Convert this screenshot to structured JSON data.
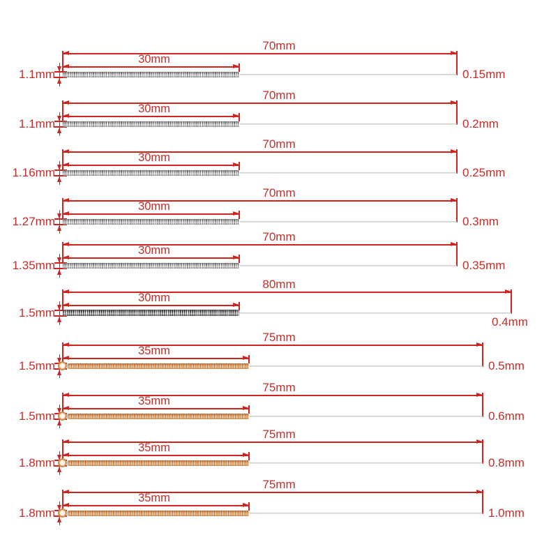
{
  "colors": {
    "dimension_line": "#cd2420",
    "dimension_text": "#c62d28",
    "steel_coil": "#9a9a9a",
    "dark_steel_coil": "#4a4a4a",
    "copper_coil": "#d98a4a",
    "needle_wire": "#d4d4d0",
    "background": "#ffffff"
  },
  "rows": [
    {
      "left_label": "1.1mm",
      "total_label": "70mm",
      "coil_label": "30mm",
      "right_label": "0.15mm",
      "coil_type": "steel",
      "shank_diameter_mm": 1.1,
      "total_length_mm": 70,
      "coil_length_mm": 30,
      "tip_diameter_mm": 0.15,
      "right_label_position": "right"
    },
    {
      "left_label": "1.1mm",
      "total_label": "70mm",
      "coil_label": "30mm",
      "right_label": "0.2mm",
      "coil_type": "steel",
      "shank_diameter_mm": 1.1,
      "total_length_mm": 70,
      "coil_length_mm": 30,
      "tip_diameter_mm": 0.2,
      "right_label_position": "right"
    },
    {
      "left_label": "1.16mm",
      "total_label": "70mm",
      "coil_label": "30mm",
      "right_label": "0.25mm",
      "coil_type": "steel",
      "shank_diameter_mm": 1.16,
      "total_length_mm": 70,
      "coil_length_mm": 30,
      "tip_diameter_mm": 0.25,
      "right_label_position": "right"
    },
    {
      "left_label": "1.27mm",
      "total_label": "70mm",
      "coil_label": "30mm",
      "right_label": "0.3mm",
      "coil_type": "steel",
      "shank_diameter_mm": 1.27,
      "total_length_mm": 70,
      "coil_length_mm": 30,
      "tip_diameter_mm": 0.3,
      "right_label_position": "right"
    },
    {
      "left_label": "1.35mm",
      "total_label": "70mm",
      "coil_label": "30mm",
      "right_label": "0.35mm",
      "coil_type": "steel",
      "shank_diameter_mm": 1.35,
      "total_length_mm": 70,
      "coil_length_mm": 30,
      "tip_diameter_mm": 0.35,
      "right_label_position": "right"
    },
    {
      "left_label": "1.5mm",
      "total_label": "80mm",
      "coil_label": "30mm",
      "right_label": "0.4mm",
      "coil_type": "dark",
      "shank_diameter_mm": 1.5,
      "total_length_mm": 80,
      "coil_length_mm": 30,
      "tip_diameter_mm": 0.4,
      "right_label_position": "below"
    },
    {
      "left_label": "1.5mm",
      "total_label": "75mm",
      "coil_label": "35mm",
      "right_label": "0.5mm",
      "coil_type": "copper",
      "shank_diameter_mm": 1.5,
      "total_length_mm": 75,
      "coil_length_mm": 35,
      "tip_diameter_mm": 0.5,
      "right_label_position": "right"
    },
    {
      "left_label": "1.5mm",
      "total_label": "75mm",
      "coil_label": "35mm",
      "right_label": "0.6mm",
      "coil_type": "copper",
      "shank_diameter_mm": 1.5,
      "total_length_mm": 75,
      "coil_length_mm": 35,
      "tip_diameter_mm": 0.6,
      "right_label_position": "right"
    },
    {
      "left_label": "1.8mm",
      "total_label": "75mm",
      "coil_label": "35mm",
      "right_label": "0.8mm",
      "coil_type": "copper",
      "shank_diameter_mm": 1.8,
      "total_length_mm": 75,
      "coil_length_mm": 35,
      "tip_diameter_mm": 0.8,
      "right_label_position": "right"
    },
    {
      "left_label": "1.8mm",
      "total_label": "75mm",
      "coil_label": "35mm",
      "right_label": "1.0mm",
      "coil_type": "copper",
      "shank_diameter_mm": 1.8,
      "total_length_mm": 75,
      "coil_length_mm": 35,
      "tip_diameter_mm": 1.0,
      "right_label_position": "right"
    }
  ]
}
